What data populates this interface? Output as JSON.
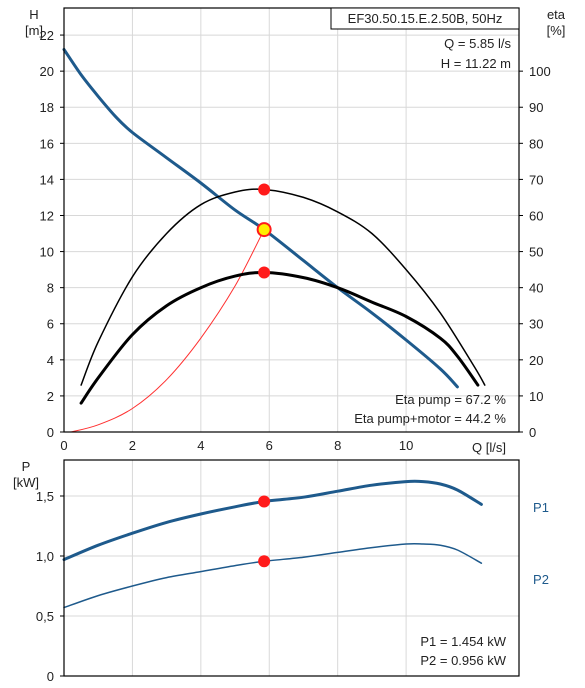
{
  "chart_data": [
    {
      "type": "line",
      "title": "EF30.50.15.E.2.50B, 50Hz",
      "xlabel": "Q [l/s]",
      "ylabel_unit": "[m]",
      "ylabel_symbol": "H",
      "y2label_symbol": "eta",
      "y2label_unit": "[%]",
      "xlim": [
        0,
        13.3
      ],
      "ylim": [
        0,
        23.5
      ],
      "y2lim": [
        0,
        117.5
      ],
      "x_ticks": [
        "0",
        "2",
        "4",
        "6",
        "8",
        "10"
      ],
      "y_ticks": [
        "0",
        "2",
        "4",
        "6",
        "8",
        "10",
        "12",
        "14",
        "16",
        "18",
        "20",
        "22"
      ],
      "y2_ticks": [
        "0",
        "10",
        "20",
        "30",
        "40",
        "50",
        "60",
        "70",
        "80",
        "90",
        "100"
      ],
      "grid": true,
      "info_q": "Q = 5.85 l/s",
      "info_h": "H = 11.22 m",
      "eta_pump_text": "Eta pump = 67.2 %",
      "eta_total_text": "Eta pump+motor = 44.2 %",
      "series": [
        {
          "axis": "left",
          "color": "#1e5a8c",
          "x": [
            0,
            0.5,
            1,
            1.5,
            2,
            3,
            4,
            5,
            5.85,
            7,
            8,
            9,
            10,
            11,
            11.5
          ],
          "y": [
            21.2,
            19.8,
            18.6,
            17.5,
            16.6,
            15.2,
            13.8,
            12.3,
            11.22,
            9.5,
            8.0,
            6.6,
            5.1,
            3.5,
            2.5
          ]
        },
        {
          "axis": "right",
          "color": "#000000",
          "x": [
            0.5,
            1,
            2,
            3,
            4,
            5,
            5.85,
            7,
            8,
            9,
            10,
            11,
            12,
            12.3
          ],
          "y": [
            13,
            25,
            43,
            55,
            63,
            66.5,
            67.2,
            65,
            61,
            55,
            45,
            33,
            18,
            13
          ]
        },
        {
          "axis": "right",
          "color": "#000000",
          "x": [
            0.5,
            1,
            2,
            3,
            4,
            5,
            5.85,
            7,
            8,
            9,
            10,
            11,
            11.5,
            12.1
          ],
          "y": [
            8,
            15,
            27,
            35,
            40,
            43.2,
            44.2,
            42.8,
            40,
            36,
            32,
            26,
            21,
            13
          ]
        },
        {
          "axis": "left",
          "color": "#ff3030",
          "x": [
            0.2,
            1,
            2,
            3,
            4,
            5,
            5.85
          ],
          "y": [
            0,
            0.4,
            1.3,
            2.9,
            5.2,
            8.1,
            11.22
          ]
        }
      ],
      "operating_point": {
        "q": 5.85,
        "h": 11.22,
        "eta_pump": 67.2,
        "eta_total": 44.2
      }
    },
    {
      "type": "line",
      "ylabel_symbol": "P",
      "ylabel_unit": "[kW]",
      "xlim": [
        0,
        13.3
      ],
      "ylim": [
        0,
        1.8
      ],
      "y_ticks": [
        "0",
        "0,5",
        "1,0",
        "1,5"
      ],
      "p1_text": "P1 = 1.454 kW",
      "p2_text": "P2 = 0.956 kW",
      "series": [
        {
          "name": "P1",
          "color": "#1e5a8c",
          "x": [
            0,
            1,
            2,
            3,
            4,
            5,
            5.85,
            7,
            8,
            9,
            10,
            10.5,
            11,
            11.5,
            12.2
          ],
          "y": [
            0.97,
            1.09,
            1.19,
            1.28,
            1.35,
            1.41,
            1.454,
            1.49,
            1.54,
            1.59,
            1.62,
            1.62,
            1.6,
            1.55,
            1.43
          ]
        },
        {
          "name": "P2",
          "color": "#1e5a8c",
          "x": [
            0,
            1,
            2,
            3,
            4,
            5,
            5.85,
            7,
            8,
            9,
            10,
            10.5,
            11,
            11.5,
            12.2
          ],
          "y": [
            0.57,
            0.67,
            0.75,
            0.82,
            0.87,
            0.92,
            0.956,
            0.99,
            1.03,
            1.07,
            1.1,
            1.1,
            1.09,
            1.05,
            0.94
          ]
        }
      ],
      "operating_point": {
        "q": 5.85,
        "p1": 1.454,
        "p2": 0.956
      }
    }
  ]
}
